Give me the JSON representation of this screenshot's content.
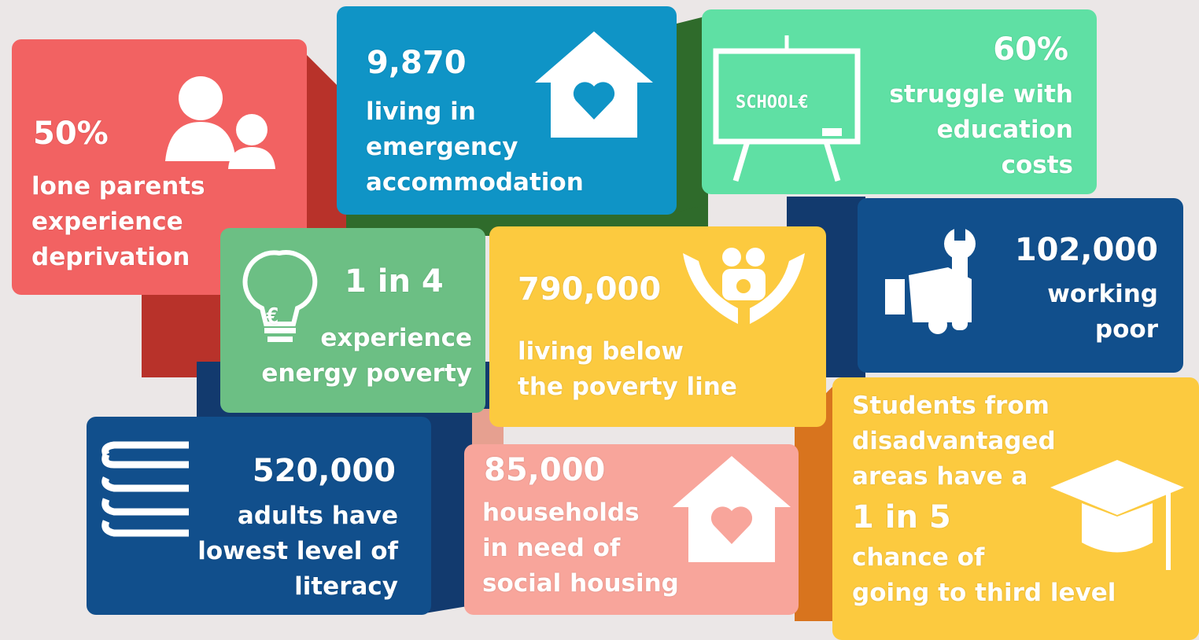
{
  "tiles": [
    {
      "stat": "50%",
      "lines": [
        "lone parents",
        "experience",
        "deprivation"
      ]
    },
    {
      "stat": "9,870",
      "lines": [
        "living in",
        "emergency",
        "accommodation"
      ]
    },
    {
      "stat": "60%",
      "lines": [
        "struggle with",
        "education",
        "costs"
      ],
      "icon_label": "SCHOOL€"
    },
    {
      "stat": "1 in 4",
      "lines": [
        "experience",
        "energy poverty"
      ],
      "icon_label": "€"
    },
    {
      "stat": "790,000",
      "lines": [
        "living below",
        "the poverty line"
      ]
    },
    {
      "stat": "102,000",
      "lines": [
        "working",
        "poor"
      ]
    },
    {
      "stat": "520,000",
      "lines": [
        "adults have",
        "lowest level of",
        "literacy"
      ]
    },
    {
      "stat": "85,000",
      "lines": [
        "households",
        "in need of",
        "social housing"
      ]
    },
    {
      "intro": [
        "Students from",
        "disadvantaged",
        "areas have a"
      ],
      "stat": "1 in 5",
      "lines": [
        "chance of",
        "going to third level"
      ]
    }
  ]
}
